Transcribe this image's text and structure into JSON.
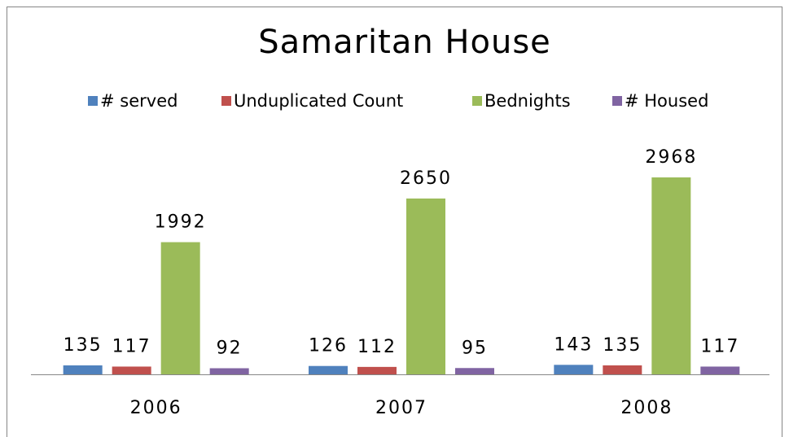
{
  "chart_data": {
    "type": "bar",
    "title": "Samaritan House",
    "categories": [
      "2006",
      "2007",
      "2008"
    ],
    "series": [
      {
        "name": "# served",
        "color": "#4f81bd",
        "values": [
          135,
          126,
          143
        ]
      },
      {
        "name": "Unduplicated Count",
        "color": "#c0504d",
        "values": [
          117,
          112,
          135
        ]
      },
      {
        "name": "Bednights",
        "color": "#9bbb59",
        "values": [
          1992,
          2650,
          2968
        ]
      },
      {
        "name": "# Housed",
        "color": "#8064a2",
        "values": [
          92,
          95,
          117
        ]
      }
    ],
    "legend": "top"
  }
}
